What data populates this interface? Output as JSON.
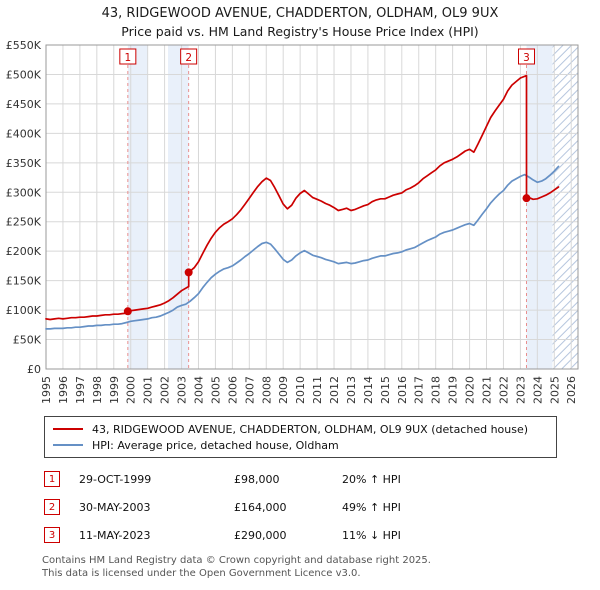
{
  "chart_data": {
    "type": "line",
    "title": "43, RIDGEWOOD AVENUE, CHADDERTON, OLDHAM, OL9 9UX",
    "subtitle": "Price paid vs. HM Land Registry's House Price Index (HPI)",
    "xlabel": "",
    "ylabel": "",
    "xlim": [
      1995,
      2026.4
    ],
    "ylim": [
      0,
      550
    ],
    "grid": true,
    "legend_position": "bottom",
    "x_ticks": [
      1995,
      1996,
      1997,
      1998,
      1999,
      2000,
      2001,
      2002,
      2003,
      2004,
      2005,
      2006,
      2007,
      2008,
      2009,
      2010,
      2011,
      2012,
      2013,
      2014,
      2015,
      2016,
      2017,
      2018,
      2019,
      2020,
      2021,
      2022,
      2023,
      2024,
      2025,
      2026
    ],
    "y_ticks": [
      {
        "v": 0,
        "label": "£0"
      },
      {
        "v": 50,
        "label": "£50K"
      },
      {
        "v": 100,
        "label": "£100K"
      },
      {
        "v": 150,
        "label": "£150K"
      },
      {
        "v": 200,
        "label": "£200K"
      },
      {
        "v": 250,
        "label": "£250K"
      },
      {
        "v": 300,
        "label": "£300K"
      },
      {
        "v": 350,
        "label": "£350K"
      },
      {
        "v": 400,
        "label": "£400K"
      },
      {
        "v": 450,
        "label": "£450K"
      },
      {
        "v": 500,
        "label": "£500K"
      },
      {
        "v": 550,
        "label": "£550K"
      }
    ],
    "bands": [
      {
        "from": 1999.83,
        "to": 2001.0
      },
      {
        "from": 2002.2,
        "to": 2003.42
      },
      {
        "from": 2023.36,
        "to": 2024.9
      }
    ],
    "hatch_band": {
      "from": 2024.9,
      "to": 2026.4
    },
    "style": {
      "band": "#e9f0fa",
      "grid": "#d8d8d8",
      "axis": "#999999",
      "dashed": "#e88f8f",
      "hatch": "#b6c6de",
      "tick_text": "#333333"
    },
    "series": [
      {
        "name": "43, RIDGEWOOD AVENUE, CHADDERTON, OLDHAM, OL9 9UX (detached house)",
        "color": "#cc0000",
        "points": [
          [
            1995,
            85
          ],
          [
            1995.25,
            84
          ],
          [
            1995.5,
            85
          ],
          [
            1995.75,
            86
          ],
          [
            1996,
            85
          ],
          [
            1996.25,
            86
          ],
          [
            1996.5,
            87
          ],
          [
            1996.75,
            87
          ],
          [
            1997,
            88
          ],
          [
            1997.25,
            88
          ],
          [
            1997.5,
            89
          ],
          [
            1997.75,
            90
          ],
          [
            1998,
            90
          ],
          [
            1998.25,
            91
          ],
          [
            1998.5,
            92
          ],
          [
            1998.75,
            92
          ],
          [
            1999,
            93
          ],
          [
            1999.25,
            93
          ],
          [
            1999.5,
            94
          ],
          [
            1999.83,
            95
          ],
          [
            1999.83,
            98
          ],
          [
            2000,
            99
          ],
          [
            2000.25,
            100
          ],
          [
            2000.5,
            101
          ],
          [
            2000.75,
            102
          ],
          [
            2001,
            103
          ],
          [
            2001.25,
            105
          ],
          [
            2001.5,
            107
          ],
          [
            2001.75,
            109
          ],
          [
            2002,
            112
          ],
          [
            2002.25,
            116
          ],
          [
            2002.5,
            121
          ],
          [
            2002.75,
            127
          ],
          [
            2003,
            133
          ],
          [
            2003.42,
            140
          ],
          [
            2003.42,
            164
          ],
          [
            2003.75,
            172
          ],
          [
            2004,
            182
          ],
          [
            2004.25,
            196
          ],
          [
            2004.5,
            210
          ],
          [
            2004.75,
            222
          ],
          [
            2005,
            232
          ],
          [
            2005.25,
            240
          ],
          [
            2005.5,
            246
          ],
          [
            2005.75,
            250
          ],
          [
            2006,
            255
          ],
          [
            2006.25,
            262
          ],
          [
            2006.5,
            270
          ],
          [
            2006.75,
            280
          ],
          [
            2007,
            290
          ],
          [
            2007.25,
            300
          ],
          [
            2007.5,
            310
          ],
          [
            2007.75,
            318
          ],
          [
            2008,
            324
          ],
          [
            2008.25,
            320
          ],
          [
            2008.5,
            308
          ],
          [
            2008.75,
            294
          ],
          [
            2009,
            280
          ],
          [
            2009.25,
            272
          ],
          [
            2009.5,
            278
          ],
          [
            2009.75,
            290
          ],
          [
            2010,
            298
          ],
          [
            2010.25,
            303
          ],
          [
            2010.5,
            297
          ],
          [
            2010.75,
            291
          ],
          [
            2011,
            288
          ],
          [
            2011.25,
            285
          ],
          [
            2011.5,
            281
          ],
          [
            2011.75,
            278
          ],
          [
            2012,
            274
          ],
          [
            2012.25,
            269
          ],
          [
            2012.5,
            271
          ],
          [
            2012.75,
            273
          ],
          [
            2013,
            269
          ],
          [
            2013.25,
            271
          ],
          [
            2013.5,
            274
          ],
          [
            2013.75,
            277
          ],
          [
            2014,
            279
          ],
          [
            2014.25,
            284
          ],
          [
            2014.5,
            287
          ],
          [
            2014.75,
            289
          ],
          [
            2015,
            289
          ],
          [
            2015.25,
            292
          ],
          [
            2015.5,
            295
          ],
          [
            2015.75,
            297
          ],
          [
            2016,
            299
          ],
          [
            2016.25,
            304
          ],
          [
            2016.5,
            307
          ],
          [
            2016.75,
            311
          ],
          [
            2017,
            316
          ],
          [
            2017.25,
            323
          ],
          [
            2017.5,
            328
          ],
          [
            2017.75,
            333
          ],
          [
            2018,
            338
          ],
          [
            2018.25,
            345
          ],
          [
            2018.5,
            350
          ],
          [
            2018.75,
            353
          ],
          [
            2019,
            356
          ],
          [
            2019.25,
            360
          ],
          [
            2019.5,
            365
          ],
          [
            2019.75,
            370
          ],
          [
            2020,
            373
          ],
          [
            2020.25,
            368
          ],
          [
            2020.5,
            382
          ],
          [
            2020.75,
            397
          ],
          [
            2021,
            412
          ],
          [
            2021.25,
            427
          ],
          [
            2021.5,
            438
          ],
          [
            2021.75,
            448
          ],
          [
            2022,
            458
          ],
          [
            2022.25,
            472
          ],
          [
            2022.5,
            482
          ],
          [
            2022.75,
            488
          ],
          [
            2023,
            494
          ],
          [
            2023.36,
            498
          ],
          [
            2023.36,
            290
          ],
          [
            2023.5,
            291
          ],
          [
            2023.75,
            288
          ],
          [
            2024,
            289
          ],
          [
            2024.25,
            292
          ],
          [
            2024.5,
            295
          ],
          [
            2024.75,
            299
          ],
          [
            2025,
            304
          ],
          [
            2025.25,
            309
          ]
        ]
      },
      {
        "name": "HPI: Average price, detached house, Oldham",
        "color": "#6590c5",
        "points": [
          [
            1995,
            68
          ],
          [
            1995.25,
            68
          ],
          [
            1995.5,
            69
          ],
          [
            1995.75,
            69
          ],
          [
            1996,
            69
          ],
          [
            1996.25,
            70
          ],
          [
            1996.5,
            70
          ],
          [
            1996.75,
            71
          ],
          [
            1997,
            71
          ],
          [
            1997.25,
            72
          ],
          [
            1997.5,
            73
          ],
          [
            1997.75,
            73
          ],
          [
            1998,
            74
          ],
          [
            1998.25,
            74
          ],
          [
            1998.5,
            75
          ],
          [
            1998.75,
            75
          ],
          [
            1999,
            76
          ],
          [
            1999.25,
            76
          ],
          [
            1999.5,
            77
          ],
          [
            1999.75,
            79
          ],
          [
            2000,
            81
          ],
          [
            2000.25,
            82
          ],
          [
            2000.5,
            83
          ],
          [
            2000.75,
            84
          ],
          [
            2001,
            85
          ],
          [
            2001.25,
            87
          ],
          [
            2001.5,
            88
          ],
          [
            2001.75,
            90
          ],
          [
            2002,
            93
          ],
          [
            2002.25,
            96
          ],
          [
            2002.5,
            100
          ],
          [
            2002.75,
            105
          ],
          [
            2003,
            108
          ],
          [
            2003.25,
            110
          ],
          [
            2003.5,
            115
          ],
          [
            2003.75,
            121
          ],
          [
            2004,
            128
          ],
          [
            2004.25,
            138
          ],
          [
            2004.5,
            147
          ],
          [
            2004.75,
            155
          ],
          [
            2005,
            161
          ],
          [
            2005.25,
            166
          ],
          [
            2005.5,
            170
          ],
          [
            2005.75,
            172
          ],
          [
            2006,
            175
          ],
          [
            2006.25,
            180
          ],
          [
            2006.5,
            185
          ],
          [
            2006.75,
            191
          ],
          [
            2007,
            196
          ],
          [
            2007.25,
            202
          ],
          [
            2007.5,
            208
          ],
          [
            2007.75,
            213
          ],
          [
            2008,
            215
          ],
          [
            2008.25,
            212
          ],
          [
            2008.5,
            204
          ],
          [
            2008.75,
            195
          ],
          [
            2009,
            186
          ],
          [
            2009.25,
            181
          ],
          [
            2009.5,
            185
          ],
          [
            2009.75,
            192
          ],
          [
            2010,
            197
          ],
          [
            2010.25,
            201
          ],
          [
            2010.5,
            197
          ],
          [
            2010.75,
            193
          ],
          [
            2011,
            191
          ],
          [
            2011.25,
            189
          ],
          [
            2011.5,
            186
          ],
          [
            2011.75,
            184
          ],
          [
            2012,
            182
          ],
          [
            2012.25,
            179
          ],
          [
            2012.5,
            180
          ],
          [
            2012.75,
            181
          ],
          [
            2013,
            179
          ],
          [
            2013.25,
            180
          ],
          [
            2013.5,
            182
          ],
          [
            2013.75,
            184
          ],
          [
            2014,
            185
          ],
          [
            2014.25,
            188
          ],
          [
            2014.5,
            190
          ],
          [
            2014.75,
            192
          ],
          [
            2015,
            192
          ],
          [
            2015.25,
            194
          ],
          [
            2015.5,
            196
          ],
          [
            2015.75,
            197
          ],
          [
            2016,
            199
          ],
          [
            2016.25,
            202
          ],
          [
            2016.5,
            204
          ],
          [
            2016.75,
            206
          ],
          [
            2017,
            210
          ],
          [
            2017.25,
            214
          ],
          [
            2017.5,
            218
          ],
          [
            2017.75,
            221
          ],
          [
            2018,
            224
          ],
          [
            2018.25,
            229
          ],
          [
            2018.5,
            232
          ],
          [
            2018.75,
            234
          ],
          [
            2019,
            236
          ],
          [
            2019.25,
            239
          ],
          [
            2019.5,
            242
          ],
          [
            2019.75,
            245
          ],
          [
            2020,
            247
          ],
          [
            2020.25,
            244
          ],
          [
            2020.5,
            253
          ],
          [
            2020.75,
            263
          ],
          [
            2021,
            272
          ],
          [
            2021.25,
            282
          ],
          [
            2021.5,
            290
          ],
          [
            2021.75,
            297
          ],
          [
            2022,
            303
          ],
          [
            2022.25,
            312
          ],
          [
            2022.5,
            319
          ],
          [
            2022.75,
            323
          ],
          [
            2023,
            327
          ],
          [
            2023.25,
            330
          ],
          [
            2023.5,
            326
          ],
          [
            2023.75,
            321
          ],
          [
            2024,
            317
          ],
          [
            2024.25,
            319
          ],
          [
            2024.5,
            323
          ],
          [
            2024.75,
            329
          ],
          [
            2025,
            336
          ],
          [
            2025.25,
            344
          ]
        ]
      }
    ],
    "markers": [
      {
        "num": "1",
        "year": 1999.83,
        "value": 98,
        "date": "29-OCT-1999",
        "price": "£98,000",
        "hpi": "20% ↑ HPI"
      },
      {
        "num": "2",
        "year": 2003.42,
        "value": 164,
        "date": "30-MAY-2003",
        "price": "£164,000",
        "hpi": "49% ↑ HPI"
      },
      {
        "num": "3",
        "year": 2023.36,
        "value": 290,
        "date": "11-MAY-2023",
        "price": "£290,000",
        "hpi": "11% ↓ HPI"
      }
    ]
  },
  "footer": {
    "line1": "Contains HM Land Registry data © Crown copyright and database right 2025.",
    "line2": "This data is licensed under the Open Government Licence v3.0."
  }
}
